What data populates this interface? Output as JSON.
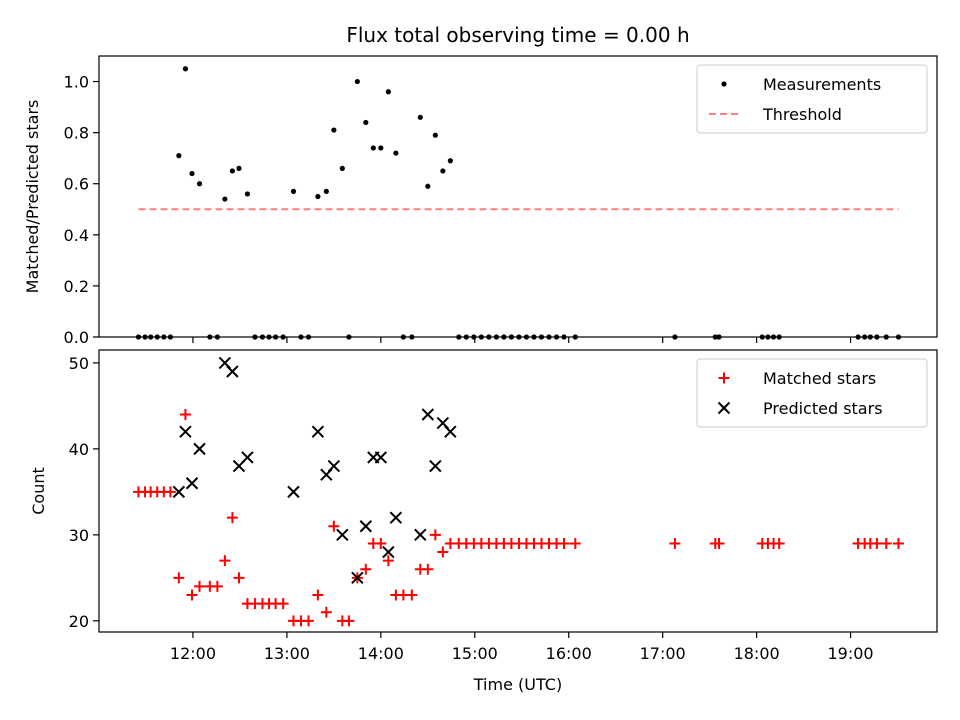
{
  "chart_data": {
    "type": "scatter",
    "title": "Flux total observing time = 0.00 h",
    "xlabel": "Time (UTC)",
    "x_unit": "hours (UTC)",
    "x_ticks": [
      {
        "value": 12,
        "label": "12:00"
      },
      {
        "value": 13,
        "label": "13:00"
      },
      {
        "value": 14,
        "label": "14:00"
      },
      {
        "value": 15,
        "label": "15:00"
      },
      {
        "value": 16,
        "label": "16:00"
      },
      {
        "value": 17,
        "label": "17:00"
      },
      {
        "value": 18,
        "label": "18:00"
      },
      {
        "value": 19,
        "label": "19:00"
      }
    ],
    "xlim": [
      11.0,
      19.92
    ],
    "panels": [
      {
        "ylabel": "Matched/Predicted stars",
        "ylim": [
          0,
          1.1
        ],
        "y_ticks": [
          {
            "value": 0.0,
            "label": "0.0"
          },
          {
            "value": 0.2,
            "label": "0.2"
          },
          {
            "value": 0.4,
            "label": "0.4"
          },
          {
            "value": 0.6,
            "label": "0.6"
          },
          {
            "value": 0.8,
            "label": "0.8"
          },
          {
            "value": 1.0,
            "label": "1.0"
          }
        ],
        "legend": {
          "position": "top-right",
          "entries": [
            "Measurements",
            "Threshold"
          ]
        },
        "series": [
          {
            "name": "Measurements",
            "marker": "dot",
            "color": "#000000",
            "points": [
              [
                11.42,
                0
              ],
              [
                11.49,
                0
              ],
              [
                11.55,
                0
              ],
              [
                11.62,
                0
              ],
              [
                11.69,
                0
              ],
              [
                11.76,
                0
              ],
              [
                11.85,
                0.71
              ],
              [
                11.92,
                1.05
              ],
              [
                11.99,
                0.64
              ],
              [
                12.07,
                0.6
              ],
              [
                12.18,
                0
              ],
              [
                12.26,
                0
              ],
              [
                12.34,
                0.54
              ],
              [
                12.42,
                0.65
              ],
              [
                12.49,
                0.66
              ],
              [
                12.58,
                0.56
              ],
              [
                12.66,
                0
              ],
              [
                12.74,
                0
              ],
              [
                12.81,
                0
              ],
              [
                12.88,
                0
              ],
              [
                12.96,
                0
              ],
              [
                13.07,
                0.57
              ],
              [
                13.15,
                0
              ],
              [
                13.23,
                0
              ],
              [
                13.33,
                0.55
              ],
              [
                13.42,
                0.57
              ],
              [
                13.5,
                0.81
              ],
              [
                13.59,
                0.66
              ],
              [
                13.66,
                0
              ],
              [
                13.75,
                1.0
              ],
              [
                13.84,
                0.84
              ],
              [
                13.92,
                0.74
              ],
              [
                14.0,
                0.74
              ],
              [
                14.08,
                0.96
              ],
              [
                14.16,
                0.72
              ],
              [
                14.24,
                0
              ],
              [
                14.33,
                0
              ],
              [
                14.42,
                0.86
              ],
              [
                14.5,
                0.59
              ],
              [
                14.58,
                0.79
              ],
              [
                14.66,
                0.65
              ],
              [
                14.74,
                0.69
              ],
              [
                14.83,
                0
              ],
              [
                14.91,
                0
              ],
              [
                14.99,
                0
              ],
              [
                15.07,
                0
              ],
              [
                15.15,
                0
              ],
              [
                15.23,
                0
              ],
              [
                15.31,
                0
              ],
              [
                15.39,
                0
              ],
              [
                15.47,
                0
              ],
              [
                15.55,
                0
              ],
              [
                15.63,
                0
              ],
              [
                15.71,
                0
              ],
              [
                15.79,
                0
              ],
              [
                15.87,
                0
              ],
              [
                15.95,
                0
              ],
              [
                16.07,
                0
              ],
              [
                17.13,
                0
              ],
              [
                17.56,
                0
              ],
              [
                17.6,
                0
              ],
              [
                18.06,
                0
              ],
              [
                18.12,
                0
              ],
              [
                18.18,
                0
              ],
              [
                18.24,
                0
              ],
              [
                19.08,
                0
              ],
              [
                19.15,
                0
              ],
              [
                19.21,
                0
              ],
              [
                19.28,
                0
              ],
              [
                19.38,
                0
              ],
              [
                19.51,
                0
              ]
            ]
          },
          {
            "name": "Threshold",
            "marker": "dashed-line",
            "color": "#ff7f7f",
            "points": [
              [
                11.42,
                0.5
              ],
              [
                19.51,
                0.5
              ]
            ]
          }
        ]
      },
      {
        "ylabel": "Count",
        "ylim": [
          18.7,
          51.5
        ],
        "y_ticks": [
          {
            "value": 20,
            "label": "20"
          },
          {
            "value": 30,
            "label": "30"
          },
          {
            "value": 40,
            "label": "40"
          },
          {
            "value": 50,
            "label": "50"
          }
        ],
        "legend": {
          "position": "top-right",
          "entries": [
            "Matched stars",
            "Predicted stars"
          ]
        },
        "series": [
          {
            "name": "Matched stars",
            "marker": "plus",
            "color": "#ff0000",
            "points": [
              [
                11.42,
                35
              ],
              [
                11.49,
                35
              ],
              [
                11.55,
                35
              ],
              [
                11.62,
                35
              ],
              [
                11.69,
                35
              ],
              [
                11.76,
                35
              ],
              [
                11.85,
                25
              ],
              [
                11.92,
                44
              ],
              [
                11.99,
                23
              ],
              [
                12.07,
                24
              ],
              [
                12.18,
                24
              ],
              [
                12.26,
                24
              ],
              [
                12.34,
                27
              ],
              [
                12.42,
                32
              ],
              [
                12.49,
                25
              ],
              [
                12.58,
                22
              ],
              [
                12.66,
                22
              ],
              [
                12.74,
                22
              ],
              [
                12.81,
                22
              ],
              [
                12.88,
                22
              ],
              [
                12.96,
                22
              ],
              [
                13.07,
                20
              ],
              [
                13.15,
                20
              ],
              [
                13.23,
                20
              ],
              [
                13.33,
                23
              ],
              [
                13.42,
                21
              ],
              [
                13.5,
                31
              ],
              [
                13.59,
                20
              ],
              [
                13.66,
                20
              ],
              [
                13.75,
                25
              ],
              [
                13.84,
                26
              ],
              [
                13.92,
                29
              ],
              [
                14.0,
                29
              ],
              [
                14.08,
                27
              ],
              [
                14.16,
                23
              ],
              [
                14.24,
                23
              ],
              [
                14.33,
                23
              ],
              [
                14.42,
                26
              ],
              [
                14.5,
                26
              ],
              [
                14.58,
                30
              ],
              [
                14.66,
                28
              ],
              [
                14.74,
                29
              ],
              [
                14.83,
                29
              ],
              [
                14.91,
                29
              ],
              [
                14.99,
                29
              ],
              [
                15.07,
                29
              ],
              [
                15.15,
                29
              ],
              [
                15.23,
                29
              ],
              [
                15.31,
                29
              ],
              [
                15.39,
                29
              ],
              [
                15.47,
                29
              ],
              [
                15.55,
                29
              ],
              [
                15.63,
                29
              ],
              [
                15.71,
                29
              ],
              [
                15.79,
                29
              ],
              [
                15.87,
                29
              ],
              [
                15.95,
                29
              ],
              [
                16.07,
                29
              ],
              [
                17.13,
                29
              ],
              [
                17.56,
                29
              ],
              [
                17.6,
                29
              ],
              [
                18.06,
                29
              ],
              [
                18.12,
                29
              ],
              [
                18.18,
                29
              ],
              [
                18.24,
                29
              ],
              [
                19.08,
                29
              ],
              [
                19.15,
                29
              ],
              [
                19.21,
                29
              ],
              [
                19.28,
                29
              ],
              [
                19.38,
                29
              ],
              [
                19.51,
                29
              ]
            ]
          },
          {
            "name": "Predicted stars",
            "marker": "x",
            "color": "#000000",
            "points": [
              [
                11.85,
                35
              ],
              [
                11.92,
                42
              ],
              [
                11.99,
                36
              ],
              [
                12.07,
                40
              ],
              [
                12.34,
                50
              ],
              [
                12.42,
                49
              ],
              [
                12.49,
                38
              ],
              [
                12.58,
                39
              ],
              [
                13.07,
                35
              ],
              [
                13.33,
                42
              ],
              [
                13.42,
                37
              ],
              [
                13.5,
                38
              ],
              [
                13.59,
                30
              ],
              [
                13.75,
                25
              ],
              [
                13.84,
                31
              ],
              [
                13.92,
                39
              ],
              [
                14.0,
                39
              ],
              [
                14.08,
                28
              ],
              [
                14.16,
                32
              ],
              [
                14.42,
                30
              ],
              [
                14.5,
                44
              ],
              [
                14.58,
                38
              ],
              [
                14.66,
                43
              ],
              [
                14.74,
                42
              ]
            ]
          }
        ]
      }
    ]
  }
}
